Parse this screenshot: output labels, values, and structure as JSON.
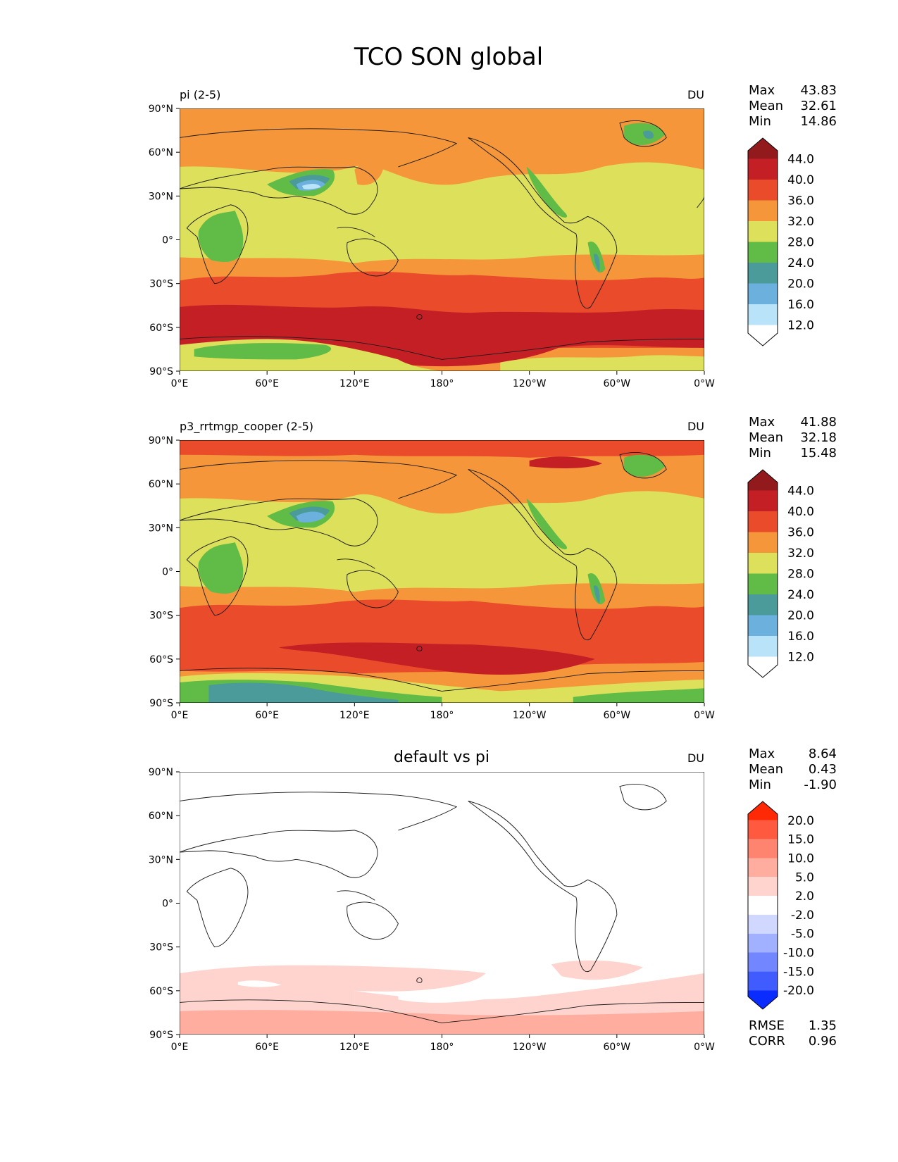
{
  "figure_title": "TCO SON global",
  "axis_ticks": {
    "lat": [
      "90°N",
      "60°N",
      "30°N",
      "0°",
      "30°S",
      "60°S",
      "90°S"
    ],
    "lon": [
      "0°E",
      "60°E",
      "120°E",
      "180°",
      "120°W",
      "60°W",
      "0°W"
    ]
  },
  "panels": [
    {
      "left_title": "pi (2-5)",
      "center_title": "",
      "units": "DU",
      "stats": [
        {
          "label": "Max",
          "value": "43.83"
        },
        {
          "label": "Mean",
          "value": "32.61"
        },
        {
          "label": "Min",
          "value": "14.86"
        }
      ],
      "extra_stats": [],
      "colorbar": {
        "ticks": [
          "44.0",
          "40.0",
          "36.0",
          "32.0",
          "28.0",
          "24.0",
          "20.0",
          "16.0",
          "12.0"
        ],
        "colors": [
          "#921a1d",
          "#c51f26",
          "#e94b2b",
          "#f5963b",
          "#dde05a",
          "#60bb47",
          "#4a9b9a",
          "#6cb0de",
          "#b8e3f8",
          "#ffffff"
        ]
      }
    },
    {
      "left_title": "p3_rrtmgp_cooper (2-5)",
      "center_title": "",
      "units": "DU",
      "stats": [
        {
          "label": "Max",
          "value": "41.88"
        },
        {
          "label": "Mean",
          "value": "32.18"
        },
        {
          "label": "Min",
          "value": "15.48"
        }
      ],
      "extra_stats": [],
      "colorbar": {
        "ticks": [
          "44.0",
          "40.0",
          "36.0",
          "32.0",
          "28.0",
          "24.0",
          "20.0",
          "16.0",
          "12.0"
        ],
        "colors": [
          "#921a1d",
          "#c51f26",
          "#e94b2b",
          "#f5963b",
          "#dde05a",
          "#60bb47",
          "#4a9b9a",
          "#6cb0de",
          "#b8e3f8",
          "#ffffff"
        ]
      }
    },
    {
      "left_title": "",
      "center_title": "default vs pi",
      "units": "DU",
      "stats": [
        {
          "label": "Max",
          "value": "8.64"
        },
        {
          "label": "Mean",
          "value": "0.43"
        },
        {
          "label": "Min",
          "value": "-1.90"
        }
      ],
      "extra_stats": [
        {
          "label": "RMSE",
          "value": "1.35"
        },
        {
          "label": "CORR",
          "value": "0.96"
        }
      ],
      "colorbar": {
        "ticks": [
          "20.0",
          "15.0",
          "10.0",
          "5.0",
          "2.0",
          "-2.0",
          "-5.0",
          "-10.0",
          "-15.0",
          "-20.0"
        ],
        "colors": [
          "#ff2a05",
          "#ff5a40",
          "#ff8470",
          "#ffad9f",
          "#ffd4ce",
          "#ffffff",
          "#d0d8ff",
          "#a1b0ff",
          "#7186ff",
          "#405cff",
          "#0b2cff"
        ]
      }
    }
  ],
  "colors": {
    "coast": "#1a1a1a",
    "field": {
      "c12": "#b8e3f8",
      "c16": "#6cb0de",
      "c20": "#4a9b9a",
      "c24": "#60bb47",
      "c28": "#dde05a",
      "c32": "#f5963b",
      "c36": "#e94b2b",
      "c40": "#c51f26",
      "c44": "#921a1d",
      "d2": "#ffd4ce",
      "d5": "#ffad9f"
    }
  }
}
